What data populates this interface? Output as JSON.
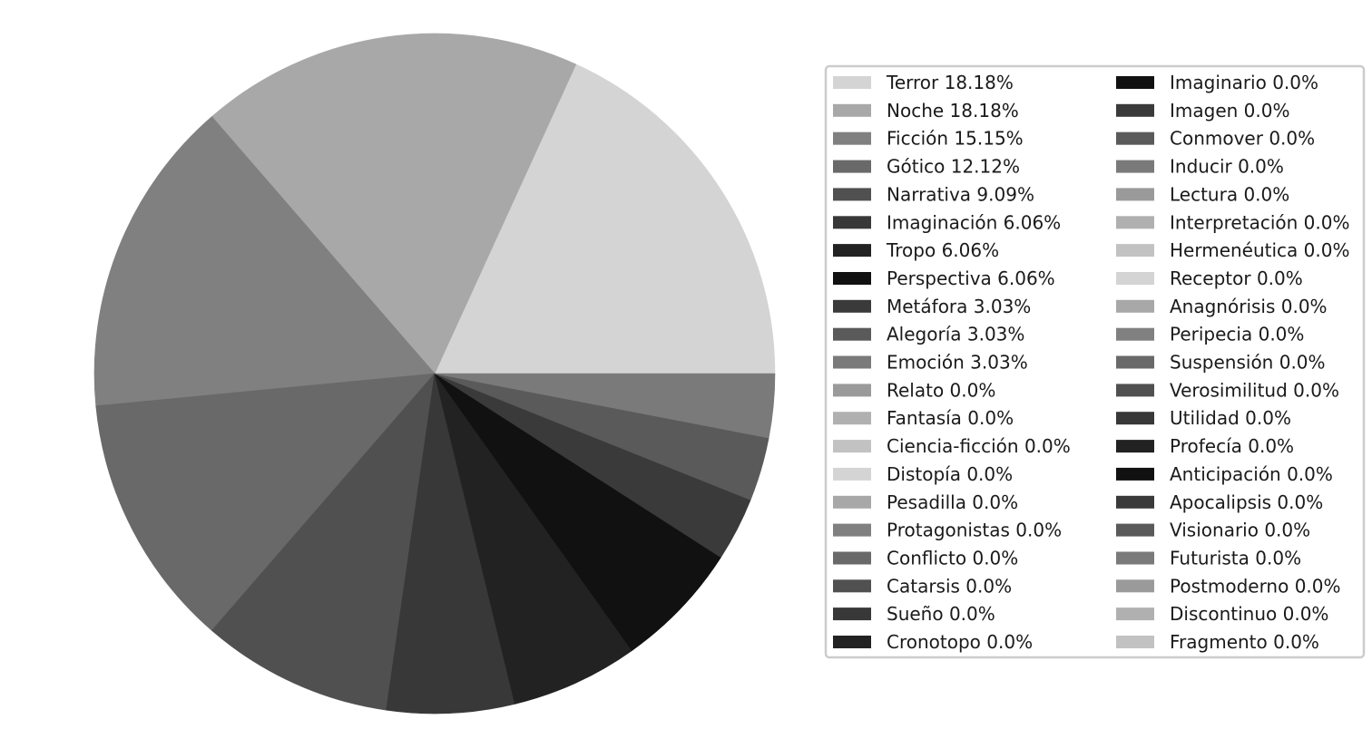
{
  "chart_data": {
    "type": "pie",
    "title": "",
    "legend_placement": "right",
    "legend_columns": 2,
    "start_angle_deg": 0,
    "direction": "counterclockwise",
    "slices": [
      {
        "label": "Terror",
        "value": 18.18,
        "legend": "Terror 18.18%",
        "color": "#d4d4d4"
      },
      {
        "label": "Noche",
        "value": 18.18,
        "legend": "Noche 18.18%",
        "color": "#a8a8a8"
      },
      {
        "label": "Ficción",
        "value": 15.15,
        "legend": "Ficción 15.15%",
        "color": "#808080"
      },
      {
        "label": "Gótico",
        "value": 12.12,
        "legend": "Gótico 12.12%",
        "color": "#696969"
      },
      {
        "label": "Narrativa",
        "value": 9.09,
        "legend": "Narrativa 9.09%",
        "color": "#505050"
      },
      {
        "label": "Imaginación",
        "value": 6.06,
        "legend": "Imaginación 6.06%",
        "color": "#383838"
      },
      {
        "label": "Tropo",
        "value": 6.06,
        "legend": "Tropo 6.06%",
        "color": "#222222"
      },
      {
        "label": "Perspectiva",
        "value": 6.06,
        "legend": "Perspectiva 6.06%",
        "color": "#111111"
      },
      {
        "label": "Metáfora",
        "value": 3.03,
        "legend": "Metáfora 3.03%",
        "color": "#3a3a3a"
      },
      {
        "label": "Alegoría",
        "value": 3.03,
        "legend": "Alegoría 3.03%",
        "color": "#5a5a5a"
      },
      {
        "label": "Emoción",
        "value": 3.03,
        "legend": "Emoción 3.03%",
        "color": "#7a7a7a"
      },
      {
        "label": "Relato",
        "value": 0.0,
        "legend": "Relato 0.0%",
        "color": "#9a9a9a"
      },
      {
        "label": "Fantasía",
        "value": 0.0,
        "legend": "Fantasía 0.0%",
        "color": "#b0b0b0"
      },
      {
        "label": "Ciencia-ficción",
        "value": 0.0,
        "legend": "Ciencia-ficción 0.0%",
        "color": "#c2c2c2"
      },
      {
        "label": "Distopía",
        "value": 0.0,
        "legend": "Distopía 0.0%",
        "color": "#d4d4d4"
      },
      {
        "label": "Pesadilla",
        "value": 0.0,
        "legend": "Pesadilla 0.0%",
        "color": "#a8a8a8"
      },
      {
        "label": "Protagonistas",
        "value": 0.0,
        "legend": "Protagonistas 0.0%",
        "color": "#808080"
      },
      {
        "label": "Conflicto",
        "value": 0.0,
        "legend": "Conflicto 0.0%",
        "color": "#696969"
      },
      {
        "label": "Catarsis",
        "value": 0.0,
        "legend": "Catarsis 0.0%",
        "color": "#505050"
      },
      {
        "label": "Sueño",
        "value": 0.0,
        "legend": "Sueño 0.0%",
        "color": "#383838"
      },
      {
        "label": "Cronotopo",
        "value": 0.0,
        "legend": "Cronotopo 0.0%",
        "color": "#222222"
      },
      {
        "label": "Imaginario",
        "value": 0.0,
        "legend": "Imaginario 0.0%",
        "color": "#111111"
      },
      {
        "label": "Imagen",
        "value": 0.0,
        "legend": "Imagen 0.0%",
        "color": "#3a3a3a"
      },
      {
        "label": "Conmover",
        "value": 0.0,
        "legend": "Conmover 0.0%",
        "color": "#5a5a5a"
      },
      {
        "label": "Inducir",
        "value": 0.0,
        "legend": "Inducir 0.0%",
        "color": "#7a7a7a"
      },
      {
        "label": "Lectura",
        "value": 0.0,
        "legend": "Lectura 0.0%",
        "color": "#9a9a9a"
      },
      {
        "label": "Interpretación",
        "value": 0.0,
        "legend": "Interpretación 0.0%",
        "color": "#b0b0b0"
      },
      {
        "label": "Hermenéutica",
        "value": 0.0,
        "legend": "Hermenéutica 0.0%",
        "color": "#c2c2c2"
      },
      {
        "label": "Receptor",
        "value": 0.0,
        "legend": "Receptor 0.0%",
        "color": "#d4d4d4"
      },
      {
        "label": "Anagnórisis",
        "value": 0.0,
        "legend": "Anagnórisis 0.0%",
        "color": "#a8a8a8"
      },
      {
        "label": "Peripecia",
        "value": 0.0,
        "legend": "Peripecia 0.0%",
        "color": "#808080"
      },
      {
        "label": "Suspensión",
        "value": 0.0,
        "legend": "Suspensión 0.0%",
        "color": "#696969"
      },
      {
        "label": "Verosimilitud",
        "value": 0.0,
        "legend": "Verosimilitud 0.0%",
        "color": "#505050"
      },
      {
        "label": "Utilidad",
        "value": 0.0,
        "legend": "Utilidad 0.0%",
        "color": "#383838"
      },
      {
        "label": "Profecía",
        "value": 0.0,
        "legend": "Profecía 0.0%",
        "color": "#222222"
      },
      {
        "label": "Anticipación",
        "value": 0.0,
        "legend": "Anticipación 0.0%",
        "color": "#111111"
      },
      {
        "label": "Apocalipsis",
        "value": 0.0,
        "legend": "Apocalipsis 0.0%",
        "color": "#3a3a3a"
      },
      {
        "label": "Visionario",
        "value": 0.0,
        "legend": "Visionario 0.0%",
        "color": "#5a5a5a"
      },
      {
        "label": "Futurista",
        "value": 0.0,
        "legend": "Futurista 0.0%",
        "color": "#7a7a7a"
      },
      {
        "label": "Postmoderno",
        "value": 0.0,
        "legend": "Postmoderno 0.0%",
        "color": "#9a9a9a"
      },
      {
        "label": "Discontinuo",
        "value": 0.0,
        "legend": "Discontinuo 0.0%",
        "color": "#b0b0b0"
      },
      {
        "label": "Fragmento",
        "value": 0.0,
        "legend": "Fragmento 0.0%",
        "color": "#c2c2c2"
      }
    ]
  }
}
